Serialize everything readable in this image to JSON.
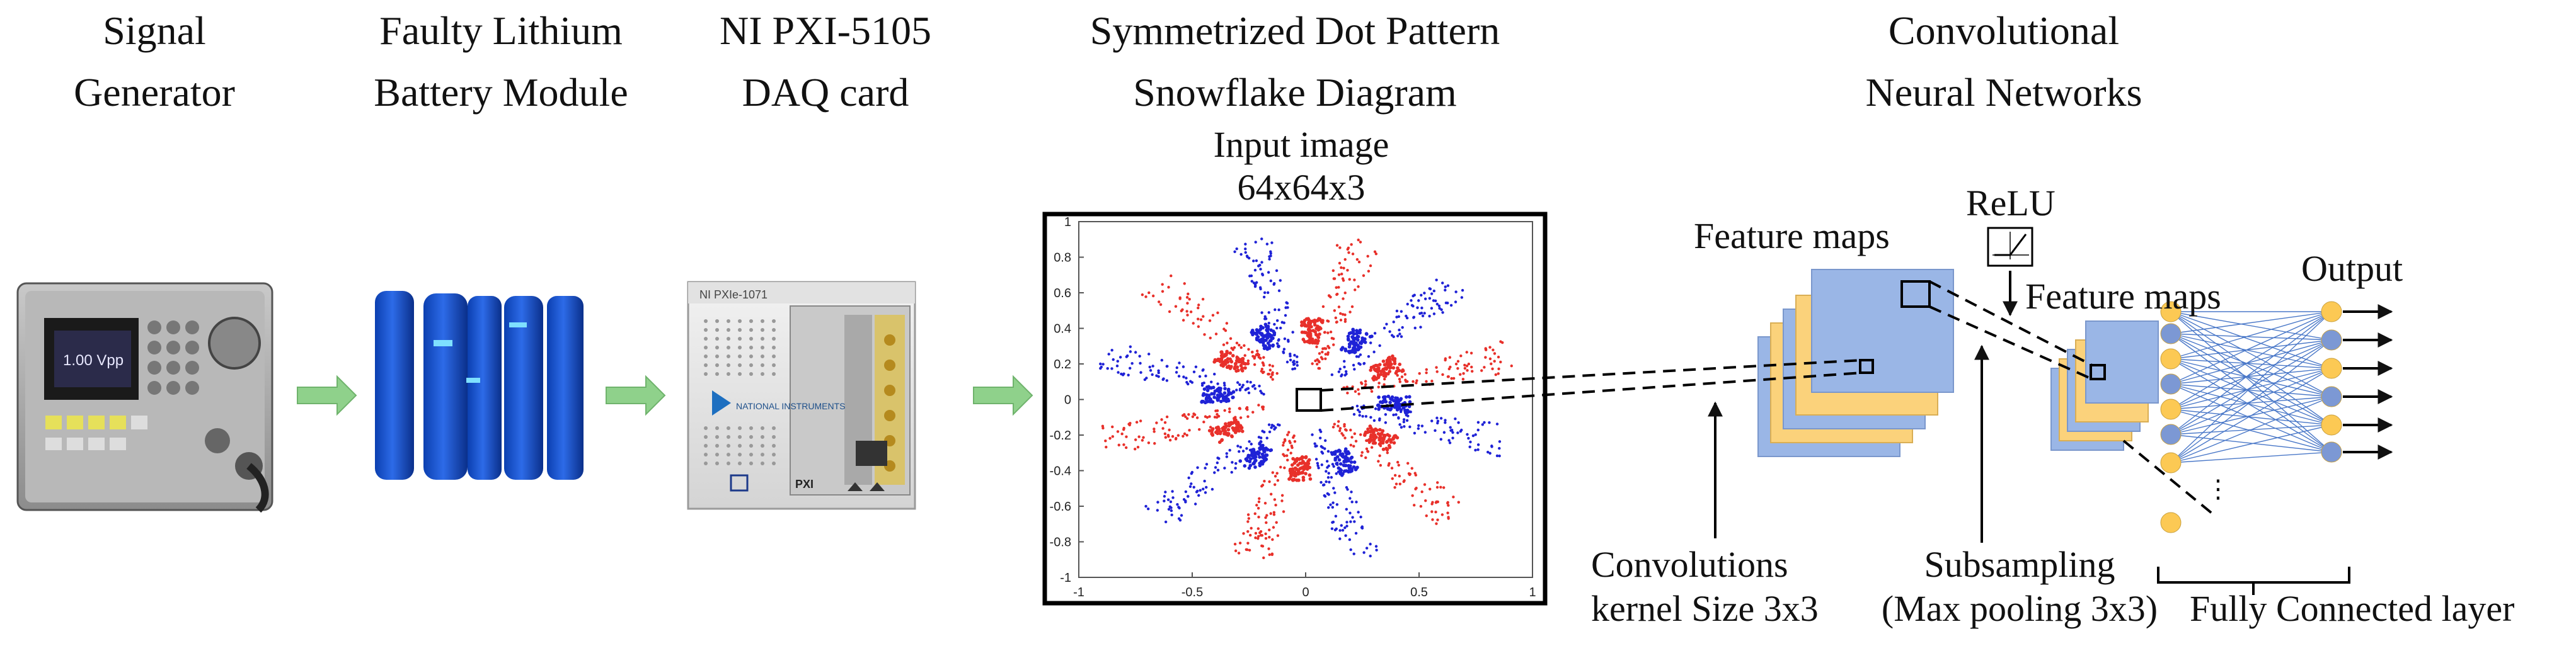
{
  "stages": [
    {
      "line1": "Signal",
      "line2": "Generator"
    },
    {
      "line1": "Faulty Lithium",
      "line2": "Battery Module"
    },
    {
      "line1": "NI PXI-5105",
      "line2": "DAQ card"
    },
    {
      "line1": "Symmetrized Dot Pattern",
      "line2": "Snowflake Diagram"
    },
    {
      "line1": "Convolutional",
      "line2": "Neural Networks"
    }
  ],
  "input_image": {
    "line1": "Input image",
    "line2": "64x64x3"
  },
  "snowflake_plot": {
    "x_ticks": [
      "-1",
      "-0.5",
      "0",
      "0.5",
      "1"
    ],
    "y_ticks": [
      "1",
      "0.8",
      "0.6",
      "0.4",
      "0.2",
      "0",
      "-0.2",
      "-0.4",
      "-0.6",
      "-0.8",
      "-1"
    ],
    "colors": {
      "red_dots": "#e8302a",
      "blue_dots": "#1f22d6"
    }
  },
  "cnn": {
    "feature_maps_1": "Feature maps",
    "feature_maps_2": "Feature maps",
    "relu": "ReLU",
    "output": "Output",
    "convolutions": {
      "line1": "Convolutions",
      "line2": "kernel Size 3x3"
    },
    "subsampling": {
      "line1": "Subsampling",
      "line2": "(Max pooling 3x3)"
    },
    "fully_connected": "Fully Connected layer",
    "colors": {
      "map_blue": "#9ab6e6",
      "map_yellow": "#fbd27b",
      "node_yellow": "#fcc954",
      "node_blue": "#7c98d4",
      "arrow_green": "#8fd18b"
    }
  },
  "device_text": {
    "generator_display": "1.00 Vpp",
    "daq_brand": "NI PXIe-1071",
    "daq_maker": "NATIONAL INSTRUMENTS",
    "daq_badge": "PXI"
  }
}
